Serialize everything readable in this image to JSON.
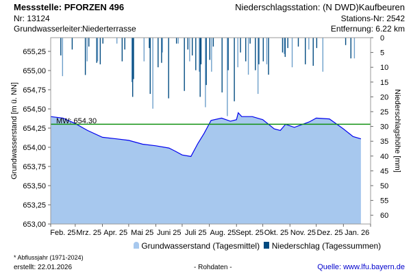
{
  "header": {
    "station": "Messstelle: PFORZEN 496",
    "nr": "Nr: 13124",
    "aquifer_label": "Grundwasserleiter:",
    "aquifer": "Niederterrasse",
    "precip_station": "Niederschlagsstation: (N DWD)Kaufbeuren",
    "stations_nr": "Stations-Nr: 2542",
    "distance": "Entfernung: 6.22 km"
  },
  "footer": {
    "note": "* Abflussjahr (1971-2024)",
    "created": "erstellt:  22.01.2026",
    "raw": "- Rohdaten -",
    "source": "Quelle: www.lfu.bayern.de"
  },
  "colors": {
    "area": "#a7c8ee",
    "line": "#0000ee",
    "mw": "#109010",
    "bar": "#004a80",
    "bar_light": "#6d9fca",
    "link": "#0000cc"
  },
  "chart_data": {
    "type": "area",
    "ylabel": "Grundwasserstand [m ü. NN]",
    "y2label": "Niederschlagshöhe [mm]",
    "ylim": [
      653.0,
      655.5
    ],
    "y2lim": [
      0,
      65
    ],
    "yticks": [
      "653,00",
      "653,25",
      "653,50",
      "653,75",
      "654,00",
      "654,25",
      "654,50",
      "654,75",
      "655,00",
      "655,25"
    ],
    "y2ticks": [
      "0",
      "5",
      "10",
      "15",
      "20",
      "25",
      "30",
      "35",
      "40",
      "45",
      "50",
      "55",
      "60"
    ],
    "xticks": [
      "Feb. 25",
      "Mrz. 25",
      "Apr. 25",
      "Mai 25",
      "Juni 25",
      "Juli 25",
      "Aug. 25",
      "Sept. 25",
      "Okt. 25",
      "Nov. 25",
      "Dez. 25",
      "Jan. 26"
    ],
    "mw": {
      "label": "MW: 654.30",
      "value": 654.3
    },
    "legend": [
      "Grundwasserstand (Tagesmittel)",
      "Niederschlag (Tagessummen)"
    ],
    "groundwater": {
      "day": [
        0,
        14,
        28,
        42,
        59,
        75,
        89,
        105,
        120,
        135,
        142,
        150,
        160,
        168,
        175,
        183,
        195,
        205,
        212,
        214,
        218,
        230,
        242,
        255,
        262,
        268,
        278,
        295,
        303,
        318,
        334,
        345,
        354
      ],
      "level": [
        654.4,
        654.38,
        654.31,
        654.22,
        654.13,
        654.11,
        654.09,
        654.04,
        654.02,
        653.99,
        653.95,
        653.9,
        653.88,
        654.05,
        654.18,
        654.35,
        654.38,
        654.34,
        654.36,
        654.45,
        654.4,
        654.4,
        654.36,
        654.24,
        654.22,
        654.3,
        654.26,
        654.33,
        654.38,
        654.37,
        654.24,
        654.14,
        654.11
      ]
    },
    "precipitation": {
      "day": [
        11,
        13,
        24,
        39,
        41,
        43,
        52,
        53,
        56,
        59,
        75,
        81,
        84,
        92,
        93,
        94,
        106,
        112,
        113,
        116,
        122,
        126,
        127,
        134,
        143,
        145,
        152,
        156,
        158,
        161,
        165,
        169,
        170,
        171,
        176,
        177,
        181,
        183,
        185,
        195,
        201,
        202,
        209,
        213,
        216,
        222,
        225,
        227,
        233,
        236,
        237,
        242,
        246,
        248,
        264,
        266,
        267,
        270,
        275,
        282,
        290,
        294,
        299,
        303,
        310,
        336,
        342,
        346
      ],
      "mm": [
        6,
        13,
        4,
        12.6,
        8,
        3,
        8.5,
        8,
        9,
        2,
        2,
        8,
        4,
        15,
        20,
        14,
        8,
        3.5,
        19,
        24,
        10,
        8.5,
        5,
        20.5,
        2,
        2,
        18,
        4,
        8,
        6,
        11,
        11.5,
        20,
        9,
        23.5,
        16,
        7.5,
        11.5,
        3,
        18.5,
        26.5,
        11,
        21.5,
        10,
        5,
        8,
        12.5,
        2,
        11,
        19,
        9,
        8,
        9,
        12.5,
        5,
        5.5,
        6.5,
        3.5,
        10,
        3,
        9,
        4,
        9.5,
        3.5,
        11.5,
        2.5,
        7,
        7
      ]
    }
  }
}
